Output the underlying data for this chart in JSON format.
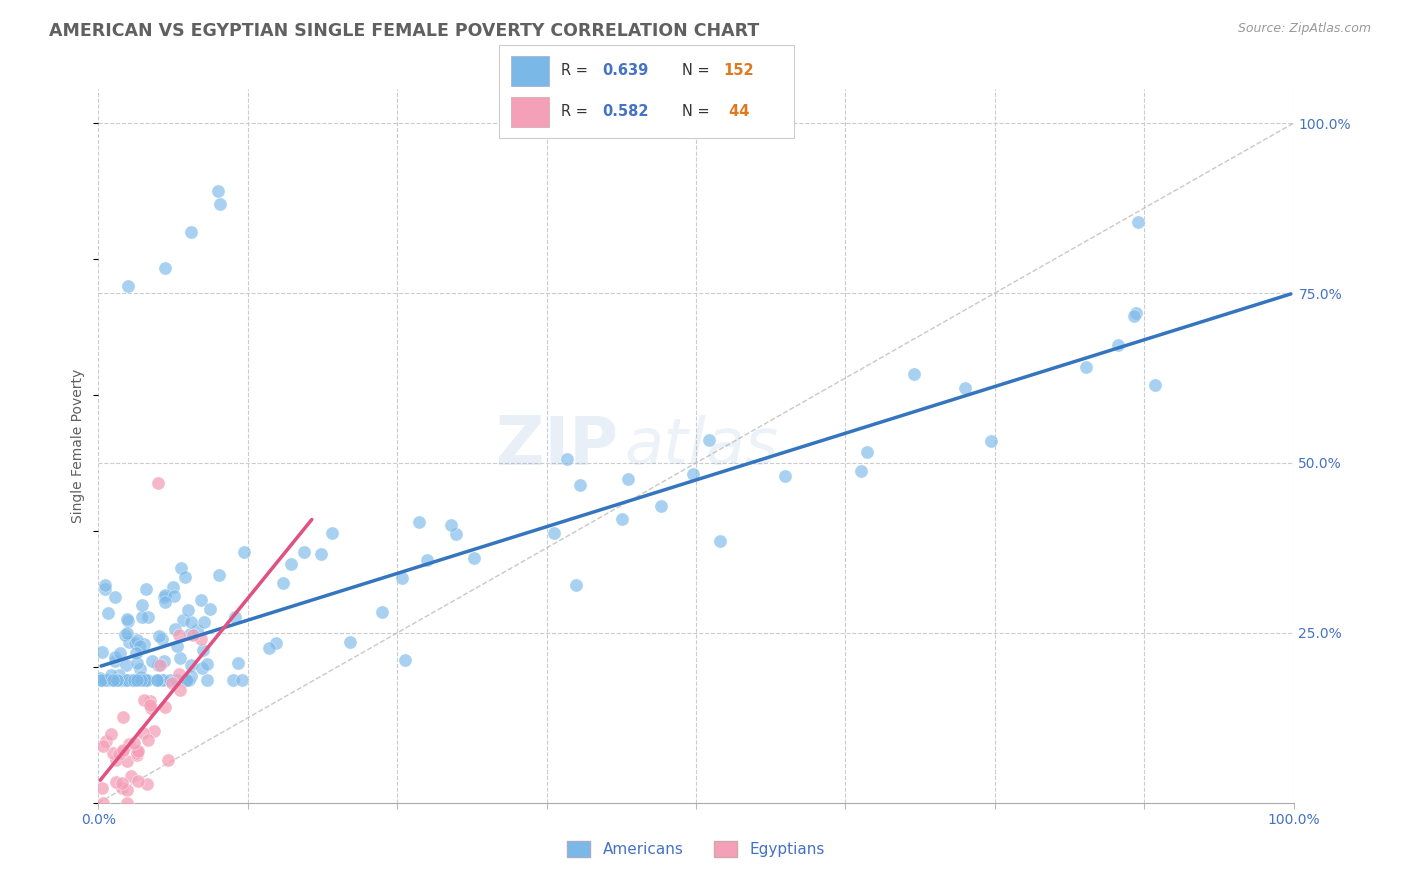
{
  "title": "AMERICAN VS EGYPTIAN SINGLE FEMALE POVERTY CORRELATION CHART",
  "source": "Source: ZipAtlas.com",
  "ylabel": "Single Female Poverty",
  "xlim": [
    0,
    1
  ],
  "ylim": [
    0,
    1.05
  ],
  "x_ticks": [
    0,
    0.125,
    0.25,
    0.375,
    0.5,
    0.625,
    0.75,
    0.875,
    1.0
  ],
  "y_ticks": [
    0.25,
    0.5,
    0.75,
    1.0
  ],
  "y_tick_labels": [
    "25.0%",
    "50.0%",
    "75.0%",
    "100.0%"
  ],
  "american_R": 0.639,
  "american_N": 152,
  "egyptian_R": 0.582,
  "egyptian_N": 44,
  "american_color": "#7ab8e8",
  "egyptian_color": "#f4a0b8",
  "american_line_color": "#3575c0",
  "egyptian_line_color": "#e05080",
  "diagonal_color": "#bbbbbb",
  "watermark_zip": "ZIP",
  "watermark_atlas": "atlas",
  "background_color": "#ffffff",
  "grid_color": "#cccccc",
  "title_color": "#606060",
  "axis_label_color": "#4472c4",
  "n_color": "#e07820",
  "am_line_start_x": 0.0,
  "am_line_start_y": 0.2,
  "am_line_end_x": 1.0,
  "am_line_end_y": 0.75,
  "eg_line_start_x": 0.0,
  "eg_line_start_y": 0.03,
  "eg_line_end_x": 0.18,
  "eg_line_end_y": 0.42
}
